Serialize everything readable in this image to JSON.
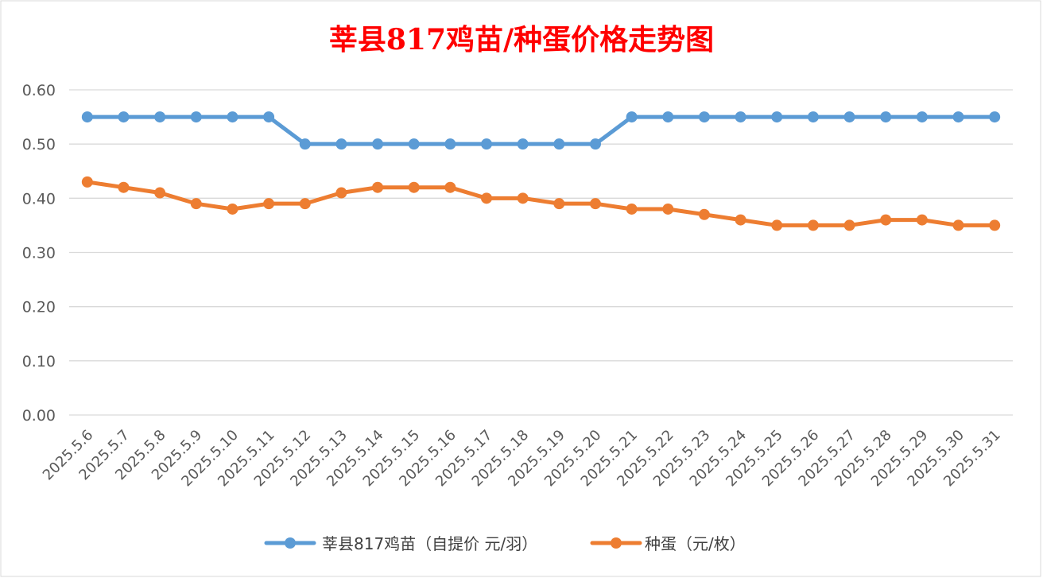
{
  "chart_data": {
    "type": "line",
    "title": "莘县817鸡苗/种蛋价格走势图",
    "title_color": "#ff0000",
    "categories": [
      "2025.5.6",
      "2025.5.7",
      "2025.5.8",
      "2025.5.9",
      "2025.5.10",
      "2025.5.11",
      "2025.5.12",
      "2025.5.13",
      "2025.5.14",
      "2025.5.15",
      "2025.5.16",
      "2025.5.17",
      "2025.5.18",
      "2025.5.19",
      "2025.5.20",
      "2025.5.21",
      "2025.5.22",
      "2025.5.23",
      "2025.5.24",
      "2025.5.25",
      "2025.5.26",
      "2025.5.27",
      "2025.5.28",
      "2025.5.29",
      "2025.5.30",
      "2025.5.31"
    ],
    "series": [
      {
        "name": "莘县817鸡苗（自提价 元/羽）",
        "color": "#5b9bd5",
        "values": [
          0.55,
          0.55,
          0.55,
          0.55,
          0.55,
          0.55,
          0.5,
          0.5,
          0.5,
          0.5,
          0.5,
          0.5,
          0.5,
          0.5,
          0.5,
          0.55,
          0.55,
          0.55,
          0.55,
          0.55,
          0.55,
          0.55,
          0.55,
          0.55,
          0.55,
          0.55
        ]
      },
      {
        "name": "种蛋（元/枚）",
        "color": "#ed7d31",
        "values": [
          0.43,
          0.42,
          0.41,
          0.39,
          0.38,
          0.39,
          0.39,
          0.41,
          0.42,
          0.42,
          0.42,
          0.4,
          0.4,
          0.39,
          0.39,
          0.38,
          0.38,
          0.37,
          0.36,
          0.35,
          0.35,
          0.35,
          0.36,
          0.36,
          0.35,
          0.35
        ]
      }
    ],
    "y_ticks": [
      "0.00",
      "0.10",
      "0.20",
      "0.30",
      "0.40",
      "0.50",
      "0.60"
    ],
    "ylim": [
      0,
      0.6
    ],
    "grid": true,
    "legend_position": "bottom"
  }
}
